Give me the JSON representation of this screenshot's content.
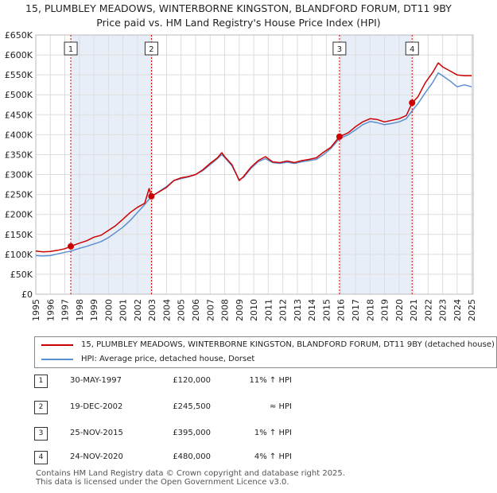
{
  "title_line1": "15, PLUMBLEY MEADOWS, WINTERBORNE KINGSTON, BLANDFORD FORUM, DT11 9BY",
  "title_line2": "Price paid vs. HM Land Registry's House Price Index (HPI)",
  "colors": {
    "property": "#cc0000",
    "hpi": "#5b8fcf",
    "shade": "#e8eef8",
    "grid": "#dddddd"
  },
  "chart_data": {
    "type": "line",
    "title": "15, PLUMBLEY MEADOWS, WINTERBORNE KINGSTON, BLANDFORD FORUM, DT11 9BY — Price paid vs. HM Land Registry's House Price Index (HPI)",
    "xlabel": "",
    "ylabel": "",
    "xlim": [
      1995,
      2025.1
    ],
    "ylim": [
      0,
      650000
    ],
    "x_ticks": [
      1995,
      1996,
      1997,
      1998,
      1999,
      2000,
      2001,
      2002,
      2003,
      2004,
      2005,
      2006,
      2007,
      2008,
      2009,
      2010,
      2011,
      2012,
      2013,
      2014,
      2015,
      2016,
      2017,
      2018,
      2019,
      2020,
      2021,
      2022,
      2023,
      2024,
      2025
    ],
    "y_ticks": [
      {
        "value": 0,
        "label": "£0"
      },
      {
        "value": 50000,
        "label": "£50K"
      },
      {
        "value": 100000,
        "label": "£100K"
      },
      {
        "value": 150000,
        "label": "£150K"
      },
      {
        "value": 200000,
        "label": "£200K"
      },
      {
        "value": 250000,
        "label": "£250K"
      },
      {
        "value": 300000,
        "label": "£300K"
      },
      {
        "value": 350000,
        "label": "£350K"
      },
      {
        "value": 400000,
        "label": "£400K"
      },
      {
        "value": 450000,
        "label": "£450K"
      },
      {
        "value": 500000,
        "label": "£500K"
      },
      {
        "value": 550000,
        "label": "£550K"
      },
      {
        "value": 600000,
        "label": "£600K"
      },
      {
        "value": 650000,
        "label": "£650K"
      }
    ],
    "grid": true,
    "series": [
      {
        "name": "15, PLUMBLEY MEADOWS, WINTERBORNE KINGSTON, BLANDFORD FORUM, DT11 9BY (detached house)",
        "color": "#cc0000",
        "points": [
          [
            1995.0,
            108000
          ],
          [
            1995.5,
            106000
          ],
          [
            1996.0,
            107000
          ],
          [
            1996.5,
            110000
          ],
          [
            1997.0,
            114000
          ],
          [
            1997.41,
            120000
          ],
          [
            1998.0,
            128000
          ],
          [
            1998.5,
            134000
          ],
          [
            1999.0,
            143000
          ],
          [
            1999.5,
            148000
          ],
          [
            2000.0,
            160000
          ],
          [
            2000.5,
            172000
          ],
          [
            2001.0,
            188000
          ],
          [
            2001.5,
            205000
          ],
          [
            2002.0,
            218000
          ],
          [
            2002.5,
            228000
          ],
          [
            2002.8,
            265000
          ],
          [
            2002.96,
            245500
          ],
          [
            2003.5,
            257000
          ],
          [
            2004.0,
            268000
          ],
          [
            2004.5,
            285000
          ],
          [
            2005.0,
            292000
          ],
          [
            2005.5,
            295000
          ],
          [
            2006.0,
            300000
          ],
          [
            2006.5,
            312000
          ],
          [
            2007.0,
            328000
          ],
          [
            2007.5,
            342000
          ],
          [
            2007.8,
            355000
          ],
          [
            2008.0,
            345000
          ],
          [
            2008.5,
            325000
          ],
          [
            2009.0,
            285000
          ],
          [
            2009.3,
            295000
          ],
          [
            2009.8,
            318000
          ],
          [
            2010.3,
            335000
          ],
          [
            2010.8,
            345000
          ],
          [
            2011.3,
            332000
          ],
          [
            2011.8,
            330000
          ],
          [
            2012.3,
            334000
          ],
          [
            2012.8,
            330000
          ],
          [
            2013.3,
            335000
          ],
          [
            2013.8,
            338000
          ],
          [
            2014.3,
            342000
          ],
          [
            2014.8,
            356000
          ],
          [
            2015.3,
            368000
          ],
          [
            2015.9,
            395000
          ],
          [
            2016.5,
            405000
          ],
          [
            2017.0,
            420000
          ],
          [
            2017.5,
            432000
          ],
          [
            2018.0,
            440000
          ],
          [
            2018.5,
            438000
          ],
          [
            2019.0,
            432000
          ],
          [
            2019.5,
            436000
          ],
          [
            2020.0,
            440000
          ],
          [
            2020.5,
            448000
          ],
          [
            2020.9,
            480000
          ],
          [
            2021.3,
            495000
          ],
          [
            2021.8,
            530000
          ],
          [
            2022.3,
            555000
          ],
          [
            2022.7,
            580000
          ],
          [
            2023.0,
            570000
          ],
          [
            2023.5,
            560000
          ],
          [
            2024.0,
            550000
          ],
          [
            2024.5,
            548000
          ],
          [
            2025.0,
            548000
          ]
        ]
      },
      {
        "name": "HPI: Average price, detached house, Dorset",
        "color": "#5b8fcf",
        "points": [
          [
            1995.0,
            97000
          ],
          [
            1995.5,
            96000
          ],
          [
            1996.0,
            97000
          ],
          [
            1996.5,
            101000
          ],
          [
            1997.0,
            105000
          ],
          [
            1997.41,
            108000
          ],
          [
            1998.0,
            115000
          ],
          [
            1998.5,
            120000
          ],
          [
            1999.0,
            126000
          ],
          [
            1999.5,
            132000
          ],
          [
            2000.0,
            142000
          ],
          [
            2000.5,
            155000
          ],
          [
            2001.0,
            168000
          ],
          [
            2001.5,
            185000
          ],
          [
            2002.0,
            205000
          ],
          [
            2002.5,
            225000
          ],
          [
            2002.96,
            245000
          ],
          [
            2003.5,
            258000
          ],
          [
            2004.0,
            270000
          ],
          [
            2004.5,
            285000
          ],
          [
            2005.0,
            290000
          ],
          [
            2005.5,
            294000
          ],
          [
            2006.0,
            300000
          ],
          [
            2006.5,
            310000
          ],
          [
            2007.0,
            325000
          ],
          [
            2007.5,
            340000
          ],
          [
            2007.8,
            350000
          ],
          [
            2008.0,
            343000
          ],
          [
            2008.5,
            322000
          ],
          [
            2009.0,
            287000
          ],
          [
            2009.3,
            293000
          ],
          [
            2009.8,
            315000
          ],
          [
            2010.3,
            332000
          ],
          [
            2010.8,
            340000
          ],
          [
            2011.3,
            330000
          ],
          [
            2011.8,
            328000
          ],
          [
            2012.3,
            331000
          ],
          [
            2012.8,
            328000
          ],
          [
            2013.3,
            332000
          ],
          [
            2013.8,
            335000
          ],
          [
            2014.3,
            338000
          ],
          [
            2014.8,
            350000
          ],
          [
            2015.3,
            365000
          ],
          [
            2015.9,
            390000
          ],
          [
            2016.5,
            400000
          ],
          [
            2017.0,
            412000
          ],
          [
            2017.5,
            425000
          ],
          [
            2018.0,
            433000
          ],
          [
            2018.5,
            430000
          ],
          [
            2019.0,
            425000
          ],
          [
            2019.5,
            428000
          ],
          [
            2020.0,
            432000
          ],
          [
            2020.5,
            440000
          ],
          [
            2020.9,
            460000
          ],
          [
            2021.3,
            478000
          ],
          [
            2021.8,
            505000
          ],
          [
            2022.3,
            530000
          ],
          [
            2022.7,
            555000
          ],
          [
            2023.0,
            548000
          ],
          [
            2023.5,
            535000
          ],
          [
            2024.0,
            520000
          ],
          [
            2024.5,
            525000
          ],
          [
            2025.0,
            520000
          ]
        ]
      }
    ],
    "sale_markers": [
      {
        "label": "1",
        "x": 1997.41,
        "y": 120000
      },
      {
        "label": "2",
        "x": 2002.96,
        "y": 245500
      },
      {
        "label": "3",
        "x": 2015.9,
        "y": 395000
      },
      {
        "label": "4",
        "x": 2020.9,
        "y": 480000
      }
    ],
    "shaded_ranges": [
      [
        1997.41,
        2002.96
      ],
      [
        2015.9,
        2020.9
      ]
    ]
  },
  "legend": {
    "property_label": "15, PLUMBLEY MEADOWS, WINTERBORNE KINGSTON, BLANDFORD FORUM, DT11 9BY (detached house)",
    "hpi_label": "HPI: Average price, detached house, Dorset"
  },
  "sales": [
    {
      "num": "1",
      "date": "30-MAY-1997",
      "price": "£120,000",
      "hpi": "11% ↑ HPI"
    },
    {
      "num": "2",
      "date": "19-DEC-2002",
      "price": "£245,500",
      "hpi": "≈ HPI"
    },
    {
      "num": "3",
      "date": "25-NOV-2015",
      "price": "£395,000",
      "hpi": "1% ↑ HPI"
    },
    {
      "num": "4",
      "date": "24-NOV-2020",
      "price": "£480,000",
      "hpi": "4% ↑ HPI"
    }
  ],
  "footer_line1": "Contains HM Land Registry data © Crown copyright and database right 2025.",
  "footer_line2": "This data is licensed under the Open Government Licence v3.0."
}
